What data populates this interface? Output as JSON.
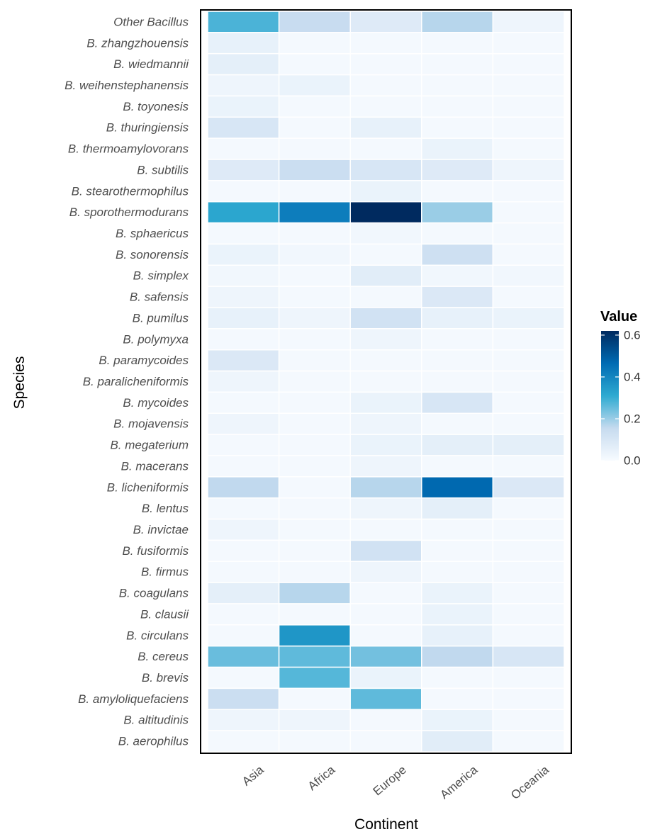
{
  "chart_data": {
    "type": "heatmap",
    "xlabel": "Continent",
    "ylabel": "Species",
    "x_categories": [
      "Asia",
      "Africa",
      "Europe",
      "America",
      "Oceania"
    ],
    "y_categories": [
      "Other Bacillus",
      "B. zhangzhouensis",
      "B. wiedmannii",
      "B. weihenstephanensis",
      "B. toyonesis",
      "B. thuringiensis",
      "B. thermoamylovorans",
      "B. subtilis",
      "B. stearothermophilus",
      "B. sporothermodurans",
      "B. sphaericus",
      "B. sonorensis",
      "B. simplex",
      "B. safensis",
      "B. pumilus",
      "B. polymyxa",
      "B. paramycoides",
      "B. paralicheniformis",
      "B. mycoides",
      "B. mojavensis",
      "B. megaterium",
      "B. macerans",
      "B. licheniformis",
      "B. lentus",
      "B. invictae",
      "B. fusiformis",
      "B. firmus",
      "B. coagulans",
      "B. clausii",
      "B. circulans",
      "B. cereus",
      "B. brevis",
      "B. amyloliquefaciens",
      "B. altitudinis",
      "B. aerophilus"
    ],
    "values": [
      [
        0.28,
        0.15,
        0.08,
        0.17,
        0.03
      ],
      [
        0.05,
        0.01,
        0.01,
        0.01,
        0.01
      ],
      [
        0.06,
        0.01,
        0.01,
        0.01,
        0.01
      ],
      [
        0.03,
        0.04,
        0.01,
        0.01,
        0.01
      ],
      [
        0.04,
        0.01,
        0.01,
        0.01,
        0.01
      ],
      [
        0.1,
        0.01,
        0.05,
        0.01,
        0.01
      ],
      [
        0.01,
        0.01,
        0.01,
        0.04,
        0.01
      ],
      [
        0.08,
        0.14,
        0.1,
        0.08,
        0.03
      ],
      [
        0.01,
        0.01,
        0.04,
        0.01,
        0.01
      ],
      [
        0.32,
        0.42,
        0.62,
        0.2,
        0.01
      ],
      [
        0.01,
        0.01,
        0.02,
        0.01,
        0.01
      ],
      [
        0.04,
        0.02,
        0.01,
        0.13,
        0.01
      ],
      [
        0.02,
        0.01,
        0.07,
        0.02,
        0.02
      ],
      [
        0.03,
        0.01,
        0.01,
        0.09,
        0.01
      ],
      [
        0.05,
        0.03,
        0.12,
        0.05,
        0.04
      ],
      [
        0.01,
        0.01,
        0.03,
        0.01,
        0.01
      ],
      [
        0.09,
        0.01,
        0.01,
        0.01,
        0.01
      ],
      [
        0.03,
        0.01,
        0.01,
        0.01,
        0.01
      ],
      [
        0.01,
        0.01,
        0.04,
        0.1,
        0.01
      ],
      [
        0.03,
        0.01,
        0.03,
        0.01,
        0.01
      ],
      [
        0.01,
        0.01,
        0.04,
        0.06,
        0.06
      ],
      [
        0.01,
        0.01,
        0.03,
        0.01,
        0.01
      ],
      [
        0.16,
        0.01,
        0.17,
        0.47,
        0.09
      ],
      [
        0.01,
        0.01,
        0.03,
        0.06,
        0.01
      ],
      [
        0.03,
        0.01,
        0.01,
        0.01,
        0.01
      ],
      [
        0.01,
        0.01,
        0.12,
        0.01,
        0.01
      ],
      [
        0.01,
        0.01,
        0.03,
        0.01,
        0.01
      ],
      [
        0.06,
        0.17,
        0.01,
        0.04,
        0.01
      ],
      [
        0.01,
        0.01,
        0.01,
        0.04,
        0.01
      ],
      [
        0.01,
        0.36,
        0.01,
        0.05,
        0.01
      ],
      [
        0.25,
        0.26,
        0.24,
        0.16,
        0.1
      ],
      [
        0.01,
        0.27,
        0.04,
        0.01,
        0.01
      ],
      [
        0.14,
        0.01,
        0.26,
        0.01,
        0.01
      ],
      [
        0.03,
        0.03,
        0.01,
        0.04,
        0.01
      ],
      [
        0.01,
        0.01,
        0.01,
        0.07,
        0.01
      ]
    ],
    "legend": {
      "title": "Value",
      "ticks": [
        "0.6",
        "0.4",
        "0.2",
        "0.0"
      ],
      "tick_values": [
        0.6,
        0.4,
        0.2,
        0.0
      ],
      "range": [
        0,
        0.62
      ],
      "colors": [
        "#f7fbff",
        "#c6dbef",
        "#2eaad1",
        "#006bb3",
        "#002a5f"
      ],
      "placement": "right"
    }
  }
}
